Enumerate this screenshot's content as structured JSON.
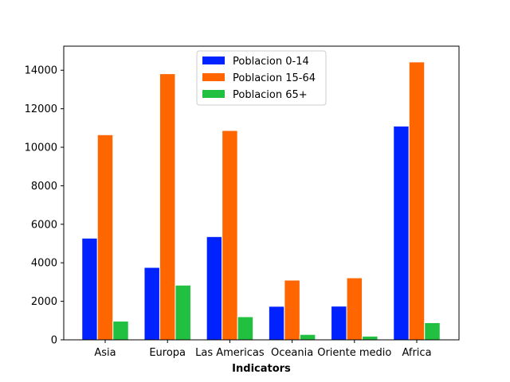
{
  "chart_data": {
    "type": "bar",
    "title": "",
    "xlabel": "Indicators",
    "ylabel": "",
    "categories": [
      "Asia",
      "Europa",
      "Las Americas",
      "Oceania",
      "Oriente medio",
      "Africa"
    ],
    "series": [
      {
        "name": "Poblacion 0-14",
        "color": "#0022ff",
        "values": [
          5280,
          3760,
          5360,
          1740,
          1750,
          11100
        ]
      },
      {
        "name": "Poblacion 15-64",
        "color": "#ff6600",
        "values": [
          10650,
          13820,
          10870,
          3100,
          3220,
          14430
        ]
      },
      {
        "name": "Poblacion 65+",
        "color": "#22c040",
        "values": [
          970,
          2840,
          1200,
          280,
          190,
          890
        ]
      }
    ],
    "ylim": [
      0,
      15250
    ],
    "yticks": [
      0,
      2000,
      4000,
      6000,
      8000,
      10000,
      12000,
      14000
    ],
    "legend": "top-center",
    "grid": false
  }
}
